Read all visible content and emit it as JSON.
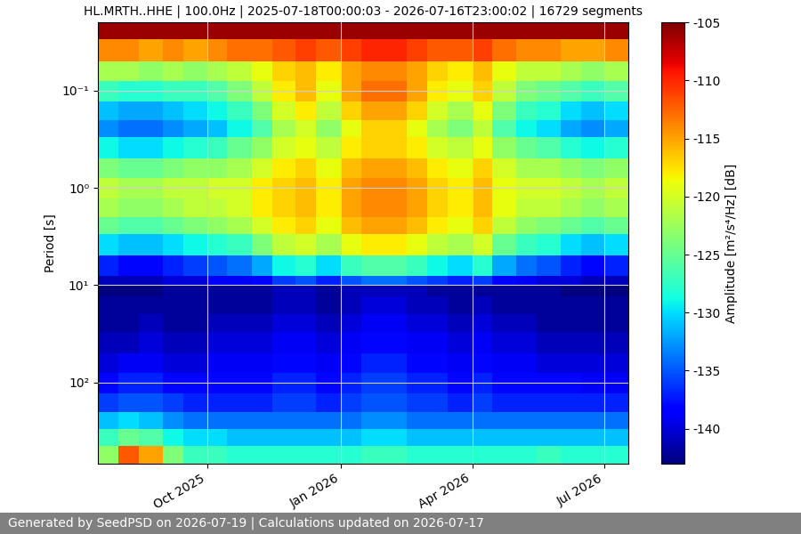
{
  "chart_data": {
    "type": "heatmap",
    "title": "HL.MRTH..HHE | 100.0Hz | 2025-07-18T00:00:03 - 2026-07-16T23:00:02 | 16729 segments",
    "y_label": "Period [s]",
    "footer": "Generated by SeedPSD on 2026-07-19 | Calculations updated on 2026-07-17",
    "log": "y",
    "grid": true,
    "xlim": [
      "2025-07-18T00:00:03",
      "2026-07-16T23:00:02"
    ],
    "xticks": [
      {
        "value": "2025-10-01",
        "label": "Oct 2025"
      },
      {
        "value": "2026-01-01",
        "label": "Jan 2026"
      },
      {
        "value": "2026-04-01",
        "label": "Apr 2026"
      },
      {
        "value": "2026-07-01",
        "label": "Jul 2026"
      }
    ],
    "ylim": [
      680,
      0.02
    ],
    "yticks": [
      {
        "value": 0.1,
        "label": "10⁻¹"
      },
      {
        "value": 1,
        "label": "10⁰"
      },
      {
        "value": 10,
        "label": "10¹"
      },
      {
        "value": 100,
        "label": "10²"
      }
    ],
    "x": [
      "2025-07-18T00:00:03",
      "2025-08-01",
      "2025-08-15",
      "2025-09-01",
      "2025-09-15",
      "2025-10-01",
      "2025-10-15",
      "2025-11-01",
      "2025-11-15",
      "2025-12-01",
      "2025-12-15",
      "2026-01-01",
      "2026-01-15",
      "2026-02-01",
      "2026-02-15",
      "2026-03-01",
      "2026-03-15",
      "2026-04-01",
      "2026-04-15",
      "2026-05-01",
      "2026-05-15",
      "2026-06-01",
      "2026-06-15",
      "2026-07-01",
      "2026-07-16T23:00:02"
    ],
    "y": [
      0.02,
      0.03,
      0.05,
      0.08,
      0.13,
      0.2,
      0.3,
      0.5,
      0.8,
      1.3,
      2,
      3,
      5,
      8,
      10,
      13,
      20,
      30,
      50,
      80,
      130,
      200,
      300,
      450,
      680
    ],
    "cells": [
      [
        -106,
        -106,
        -106,
        -106,
        -106,
        -106,
        -106,
        -106,
        -106,
        -106,
        -106,
        -106,
        -106,
        -106,
        -106,
        -106,
        -106,
        -106,
        -106,
        -106,
        -106,
        -106,
        -106,
        -106
      ],
      [
        -114,
        -114,
        -115,
        -114,
        -115,
        -114,
        -113,
        -113,
        -112,
        -111,
        -112,
        -111,
        -110,
        -110,
        -111,
        -112,
        -112,
        -111,
        -113,
        -114,
        -114,
        -115,
        -115,
        -114
      ],
      [
        -122,
        -122,
        -123,
        -122,
        -123,
        -122,
        -121,
        -119,
        -117,
        -116,
        -118,
        -115,
        -114,
        -114,
        -115,
        -117,
        -118,
        -116,
        -119,
        -121,
        -121,
        -122,
        -123,
        -122
      ],
      [
        -127,
        -128,
        -128,
        -127,
        -127,
        -126,
        -124,
        -121,
        -118,
        -116,
        -119,
        -115,
        -113,
        -113,
        -115,
        -118,
        -119,
        -117,
        -121,
        -124,
        -125,
        -126,
        -127,
        -126
      ],
      [
        -131,
        -132,
        -132,
        -131,
        -130,
        -129,
        -127,
        -124,
        -120,
        -118,
        -121,
        -117,
        -115,
        -115,
        -117,
        -120,
        -122,
        -119,
        -124,
        -127,
        -128,
        -130,
        -131,
        -130
      ],
      [
        -133,
        -134,
        -134,
        -133,
        -132,
        -131,
        -129,
        -126,
        -122,
        -120,
        -123,
        -119,
        -117,
        -117,
        -119,
        -122,
        -124,
        -121,
        -126,
        -129,
        -130,
        -132,
        -133,
        -132
      ],
      [
        -129,
        -130,
        -130,
        -129,
        -128,
        -127,
        -125,
        -123,
        -120,
        -119,
        -121,
        -118,
        -117,
        -117,
        -118,
        -120,
        -121,
        -119,
        -123,
        -125,
        -126,
        -128,
        -129,
        -128
      ],
      [
        -124,
        -125,
        -125,
        -124,
        -123,
        -123,
        -122,
        -120,
        -118,
        -117,
        -119,
        -116,
        -115,
        -115,
        -116,
        -118,
        -119,
        -117,
        -120,
        -122,
        -122,
        -123,
        -124,
        -123
      ],
      [
        -121,
        -122,
        -122,
        -121,
        -121,
        -120,
        -120,
        -118,
        -117,
        -116,
        -118,
        -115,
        -114,
        -114,
        -115,
        -117,
        -118,
        -116,
        -119,
        -120,
        -120,
        -121,
        -122,
        -121
      ],
      [
        -122,
        -123,
        -123,
        -122,
        -121,
        -121,
        -120,
        -118,
        -117,
        -116,
        -118,
        -115,
        -114,
        -114,
        -115,
        -117,
        -118,
        -116,
        -119,
        -121,
        -121,
        -122,
        -123,
        -122
      ],
      [
        -125,
        -126,
        -126,
        -125,
        -124,
        -123,
        -122,
        -120,
        -118,
        -117,
        -119,
        -116,
        -115,
        -115,
        -116,
        -118,
        -119,
        -117,
        -121,
        -123,
        -124,
        -125,
        -126,
        -125
      ],
      [
        -130,
        -131,
        -131,
        -130,
        -129,
        -128,
        -127,
        -124,
        -121,
        -120,
        -122,
        -119,
        -118,
        -118,
        -119,
        -121,
        -122,
        -120,
        -125,
        -127,
        -128,
        -130,
        -131,
        -130
      ],
      [
        -137,
        -138,
        -138,
        -137,
        -136,
        -135,
        -134,
        -132,
        -129,
        -128,
        -130,
        -127,
        -126,
        -126,
        -127,
        -129,
        -130,
        -128,
        -132,
        -134,
        -135,
        -137,
        -138,
        -137
      ],
      [
        -141,
        -141,
        -141,
        -140,
        -140,
        -139,
        -139,
        -138,
        -136,
        -135,
        -137,
        -135,
        -134,
        -134,
        -135,
        -136,
        -137,
        -136,
        -138,
        -139,
        -140,
        -140,
        -141,
        -141
      ],
      [
        -143,
        -143,
        -143,
        -142,
        -142,
        -142,
        -142,
        -142,
        -141,
        -141,
        -142,
        -141,
        -141,
        -141,
        -141,
        -142,
        -142,
        -142,
        -142,
        -142,
        -142,
        -143,
        -143,
        -143
      ],
      [
        -142,
        -142,
        -142,
        -142,
        -142,
        -142,
        -142,
        -142,
        -141,
        -141,
        -142,
        -141,
        -140,
        -140,
        -141,
        -141,
        -142,
        -141,
        -142,
        -142,
        -142,
        -142,
        -142,
        -142
      ],
      [
        -142,
        -142,
        -141,
        -142,
        -142,
        -141,
        -141,
        -141,
        -140,
        -140,
        -141,
        -140,
        -139,
        -139,
        -140,
        -140,
        -141,
        -140,
        -141,
        -141,
        -142,
        -142,
        -142,
        -142
      ],
      [
        -141,
        -141,
        -140,
        -141,
        -141,
        -140,
        -140,
        -140,
        -139,
        -139,
        -140,
        -139,
        -138,
        -138,
        -139,
        -139,
        -140,
        -139,
        -140,
        -140,
        -141,
        -141,
        -141,
        -141
      ],
      [
        -140,
        -139,
        -139,
        -140,
        -140,
        -139,
        -139,
        -139,
        -138,
        -138,
        -139,
        -138,
        -137,
        -137,
        -138,
        -138,
        -139,
        -138,
        -139,
        -139,
        -140,
        -140,
        -140,
        -140
      ],
      [
        -138,
        -137,
        -137,
        -138,
        -138,
        -138,
        -138,
        -138,
        -137,
        -137,
        -138,
        -137,
        -136,
        -136,
        -137,
        -137,
        -138,
        -137,
        -138,
        -138,
        -138,
        -138,
        -139,
        -139
      ],
      [
        -136,
        -135,
        -135,
        -136,
        -137,
        -137,
        -137,
        -137,
        -136,
        -136,
        -137,
        -136,
        -135,
        -135,
        -136,
        -136,
        -137,
        -136,
        -137,
        -137,
        -137,
        -137,
        -137,
        -137
      ],
      [
        -131,
        -130,
        -131,
        -133,
        -134,
        -134,
        -134,
        -134,
        -134,
        -134,
        -134,
        -134,
        -133,
        -133,
        -134,
        -134,
        -134,
        -134,
        -134,
        -134,
        -134,
        -134,
        -134,
        -134
      ],
      [
        -127,
        -125,
        -126,
        -129,
        -130,
        -130,
        -131,
        -131,
        -131,
        -131,
        -131,
        -131,
        -130,
        -130,
        -131,
        -131,
        -131,
        -131,
        -131,
        -131,
        -131,
        -131,
        -131,
        -131
      ],
      [
        -123,
        -112,
        -115,
        -124,
        -127,
        -127,
        -128,
        -128,
        -128,
        -128,
        -128,
        -128,
        -127,
        -127,
        -128,
        -128,
        -128,
        -128,
        -128,
        -128,
        -127,
        -128,
        -128,
        -128
      ]
    ],
    "colorbar": {
      "label": "Amplitude [m²/s⁴/Hz] [dB]",
      "range": [
        -143,
        -105
      ],
      "ticks": [
        -140,
        -135,
        -130,
        -125,
        -120,
        -115,
        -110,
        -105
      ]
    }
  }
}
